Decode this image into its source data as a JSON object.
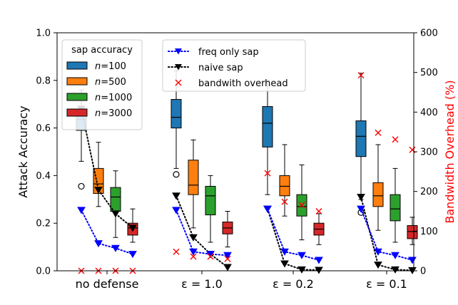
{
  "chart_data": {
    "type": "box",
    "categories": [
      "no defense",
      "ε = 1.0",
      "ε = 0.2",
      "ε = 0.1"
    ],
    "ylabel": "Attack Accuracy",
    "ylim": [
      0.0,
      1.0
    ],
    "yticks": [
      "0.0",
      "0.2",
      "0.4",
      "0.6",
      "0.8",
      "1.0"
    ],
    "y2label": "Bandwidth Overhead (%)",
    "y2lim": [
      0,
      600
    ],
    "y2ticks": [
      "0",
      "100",
      "200",
      "300",
      "400",
      "500",
      "600"
    ],
    "colors": {
      "n100": "#1f77b4",
      "n500": "#ff7f0e",
      "n1000": "#2ca02c",
      "n3000": "#d62728",
      "freq_only": "#0000ff",
      "naive": "#000000",
      "overhead": "#ff0000",
      "y2axis": "#ff0000"
    },
    "legend_left": {
      "title": "sap accuracy",
      "placement": "top-left",
      "entries": [
        {
          "key": "n100",
          "prefix": "n",
          "suffix": "=100"
        },
        {
          "key": "n500",
          "prefix": "n",
          "suffix": "=500"
        },
        {
          "key": "n1000",
          "prefix": "n",
          "suffix": "=1000"
        },
        {
          "key": "n3000",
          "prefix": "n",
          "suffix": "=3000"
        }
      ]
    },
    "legend_right": {
      "placement": "top-center",
      "entries": [
        {
          "key": "freq_only",
          "label": "freq only sap"
        },
        {
          "key": "naive",
          "label": "naive sap"
        },
        {
          "key": "overhead",
          "label": "bandwith overhead"
        }
      ]
    },
    "boxes": [
      [
        {
          "series": "n100",
          "q1": 0.59,
          "med": 0.635,
          "q3": 0.68,
          "wlo": 0.46,
          "whi": 0.76,
          "fliers": [
            0.355
          ]
        },
        {
          "series": "n500",
          "q1": 0.325,
          "med": 0.365,
          "q3": 0.43,
          "wlo": 0.27,
          "whi": 0.54,
          "fliers": []
        },
        {
          "series": "n1000",
          "q1": 0.25,
          "med": 0.31,
          "q3": 0.35,
          "wlo": 0.14,
          "whi": 0.42,
          "fliers": []
        },
        {
          "series": "n3000",
          "q1": 0.15,
          "med": 0.18,
          "q3": 0.2,
          "wlo": 0.12,
          "whi": 0.26,
          "fliers": []
        }
      ],
      [
        {
          "series": "n100",
          "q1": 0.6,
          "med": 0.645,
          "q3": 0.72,
          "wlo": 0.43,
          "whi": 0.84,
          "fliers": [
            0.405
          ]
        },
        {
          "series": "n500",
          "q1": 0.32,
          "med": 0.36,
          "q3": 0.465,
          "wlo": 0.18,
          "whi": 0.55,
          "fliers": []
        },
        {
          "series": "n1000",
          "q1": 0.235,
          "med": 0.315,
          "q3": 0.355,
          "wlo": 0.12,
          "whi": 0.4,
          "fliers": []
        },
        {
          "series": "n3000",
          "q1": 0.155,
          "med": 0.18,
          "q3": 0.205,
          "wlo": 0.1,
          "whi": 0.25,
          "fliers": []
        }
      ],
      [
        {
          "series": "n100",
          "q1": 0.52,
          "med": 0.62,
          "q3": 0.69,
          "wlo": 0.32,
          "whi": 0.8,
          "fliers": []
        },
        {
          "series": "n500",
          "q1": 0.315,
          "med": 0.355,
          "q3": 0.4,
          "wlo": 0.23,
          "whi": 0.53,
          "fliers": []
        },
        {
          "series": "n1000",
          "q1": 0.23,
          "med": 0.27,
          "q3": 0.32,
          "wlo": 0.13,
          "whi": 0.445,
          "fliers": []
        },
        {
          "series": "n3000",
          "q1": 0.15,
          "med": 0.175,
          "q3": 0.2,
          "wlo": 0.11,
          "whi": 0.24,
          "fliers": []
        }
      ],
      [
        {
          "series": "n100",
          "q1": 0.48,
          "med": 0.565,
          "q3": 0.63,
          "wlo": 0.3,
          "whi": 0.83,
          "fliers": [
            0.245
          ]
        },
        {
          "series": "n500",
          "q1": 0.27,
          "med": 0.315,
          "q3": 0.37,
          "wlo": 0.17,
          "whi": 0.53,
          "fliers": []
        },
        {
          "series": "n1000",
          "q1": 0.21,
          "med": 0.26,
          "q3": 0.32,
          "wlo": 0.12,
          "whi": 0.43,
          "fliers": []
        },
        {
          "series": "n3000",
          "q1": 0.135,
          "med": 0.165,
          "q3": 0.19,
          "wlo": 0.11,
          "whi": 0.225,
          "fliers": []
        }
      ]
    ],
    "freq_only": [
      [
        0.255,
        0.115,
        0.095,
        0.07
      ],
      [
        0.255,
        0.08,
        0.07,
        0.065
      ],
      [
        0.26,
        0.08,
        0.065,
        0.045
      ],
      [
        0.26,
        0.08,
        0.065,
        0.045
      ]
    ],
    "naive": [
      [
        0.68,
        0.34,
        0.24,
        0.18
      ],
      [
        0.315,
        0.14,
        0.07,
        0.015
      ],
      [
        0.26,
        0.03,
        0.005,
        0.003
      ],
      [
        0.31,
        0.025,
        0.005,
        0.002
      ]
    ],
    "overhead": [
      [
        0,
        0,
        0,
        0
      ],
      [
        48,
        36,
        36,
        30
      ],
      [
        246,
        174,
        166,
        150
      ],
      [
        493,
        348,
        331,
        305
      ]
    ]
  }
}
